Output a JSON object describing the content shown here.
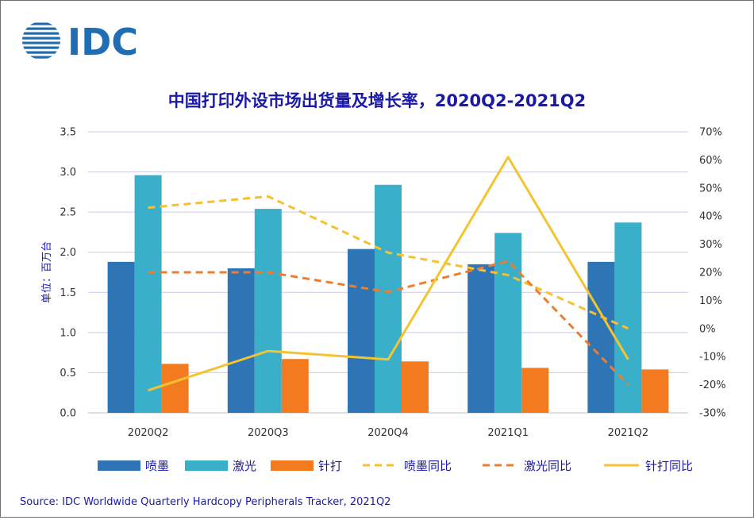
{
  "logo": {
    "text": "IDC"
  },
  "chart_data": {
    "type": "bar",
    "title": "中国打印外设市场出货量及增长率，2020Q2-2021Q2",
    "ylabel": "单位：百万台",
    "xlabel": "",
    "categories": [
      "2020Q2",
      "2020Q3",
      "2020Q4",
      "2021Q1",
      "2021Q2"
    ],
    "ylim": [
      0,
      3.5
    ],
    "y_ticks": [
      "0.0",
      "0.5",
      "1.0",
      "1.5",
      "2.0",
      "2.5",
      "3.0",
      "3.5"
    ],
    "y2lim": [
      -30,
      70
    ],
    "y2_ticks": [
      "-30%",
      "-20%",
      "-10%",
      "0%",
      "10%",
      "20%",
      "30%",
      "40%",
      "50%",
      "60%",
      "70%"
    ],
    "grid": true,
    "series": [
      {
        "name": "喷墨",
        "kind": "bar",
        "color": "#2e75b6",
        "values": [
          1.88,
          1.8,
          2.04,
          1.85,
          1.88
        ]
      },
      {
        "name": "激光",
        "kind": "bar",
        "color": "#3aafc9",
        "values": [
          2.96,
          2.54,
          2.84,
          2.24,
          2.37
        ]
      },
      {
        "name": "针打",
        "kind": "bar",
        "color": "#f47a20",
        "values": [
          0.61,
          0.67,
          0.64,
          0.56,
          0.54
        ]
      },
      {
        "name": "喷墨同比",
        "kind": "line",
        "style": "dashed",
        "axis": "right",
        "color": "#f6c02e",
        "values": [
          43,
          47,
          27,
          19,
          0
        ]
      },
      {
        "name": "激光同比",
        "kind": "line",
        "style": "dashed",
        "axis": "right",
        "color": "#ed7d31",
        "values": [
          20,
          20,
          13,
          24,
          -20
        ]
      },
      {
        "name": "针打同比",
        "kind": "line",
        "style": "solid",
        "axis": "right",
        "color": "#f4c430",
        "values": [
          -22,
          -8,
          -11,
          61,
          -11
        ]
      }
    ]
  },
  "source": "Source:  IDC Worldwide Quarterly Hardcopy Peripherals Tracker, 2021Q2"
}
